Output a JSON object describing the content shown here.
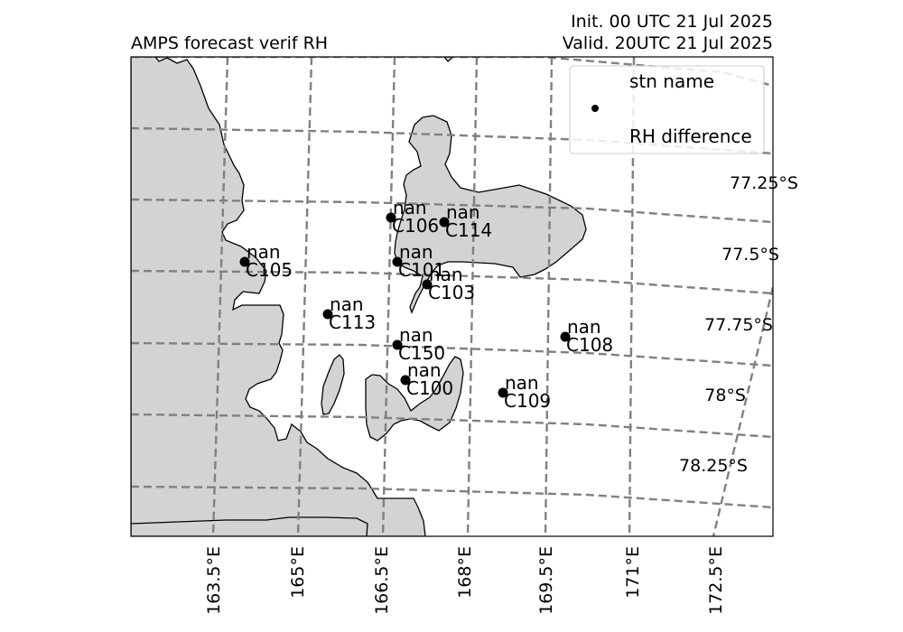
{
  "title_left": "AMPS forecast verif RH",
  "title_right_line1": "Init. 00 UTC 21 Jul 2025",
  "title_right_line2": "Valid. 20UTC 21 Jul 2025",
  "legend": {
    "stn_label": "stn name",
    "value_label": "RH difference"
  },
  "lat_labels": [
    "77.25°S",
    "77.5°S",
    "77.75°S",
    "78°S",
    "78.25°S"
  ],
  "lon_labels": [
    "163.5°E",
    "165°E",
    "166.5°E",
    "168°E",
    "169.5°E",
    "171°E",
    "172.5°E"
  ],
  "colors": {
    "land": "#d3d3d3",
    "grid": "#808080",
    "station": "#000000"
  },
  "stations": [
    {
      "name": "C106",
      "value": "nan"
    },
    {
      "name": "C114",
      "value": "nan"
    },
    {
      "name": "C105",
      "value": "nan"
    },
    {
      "name": "C101",
      "value": "nan"
    },
    {
      "name": "C103",
      "value": "nan"
    },
    {
      "name": "C113",
      "value": "nan"
    },
    {
      "name": "C150",
      "value": "nan"
    },
    {
      "name": "C108",
      "value": "nan"
    },
    {
      "name": "C100",
      "value": "nan"
    },
    {
      "name": "C109",
      "value": "nan"
    }
  ]
}
